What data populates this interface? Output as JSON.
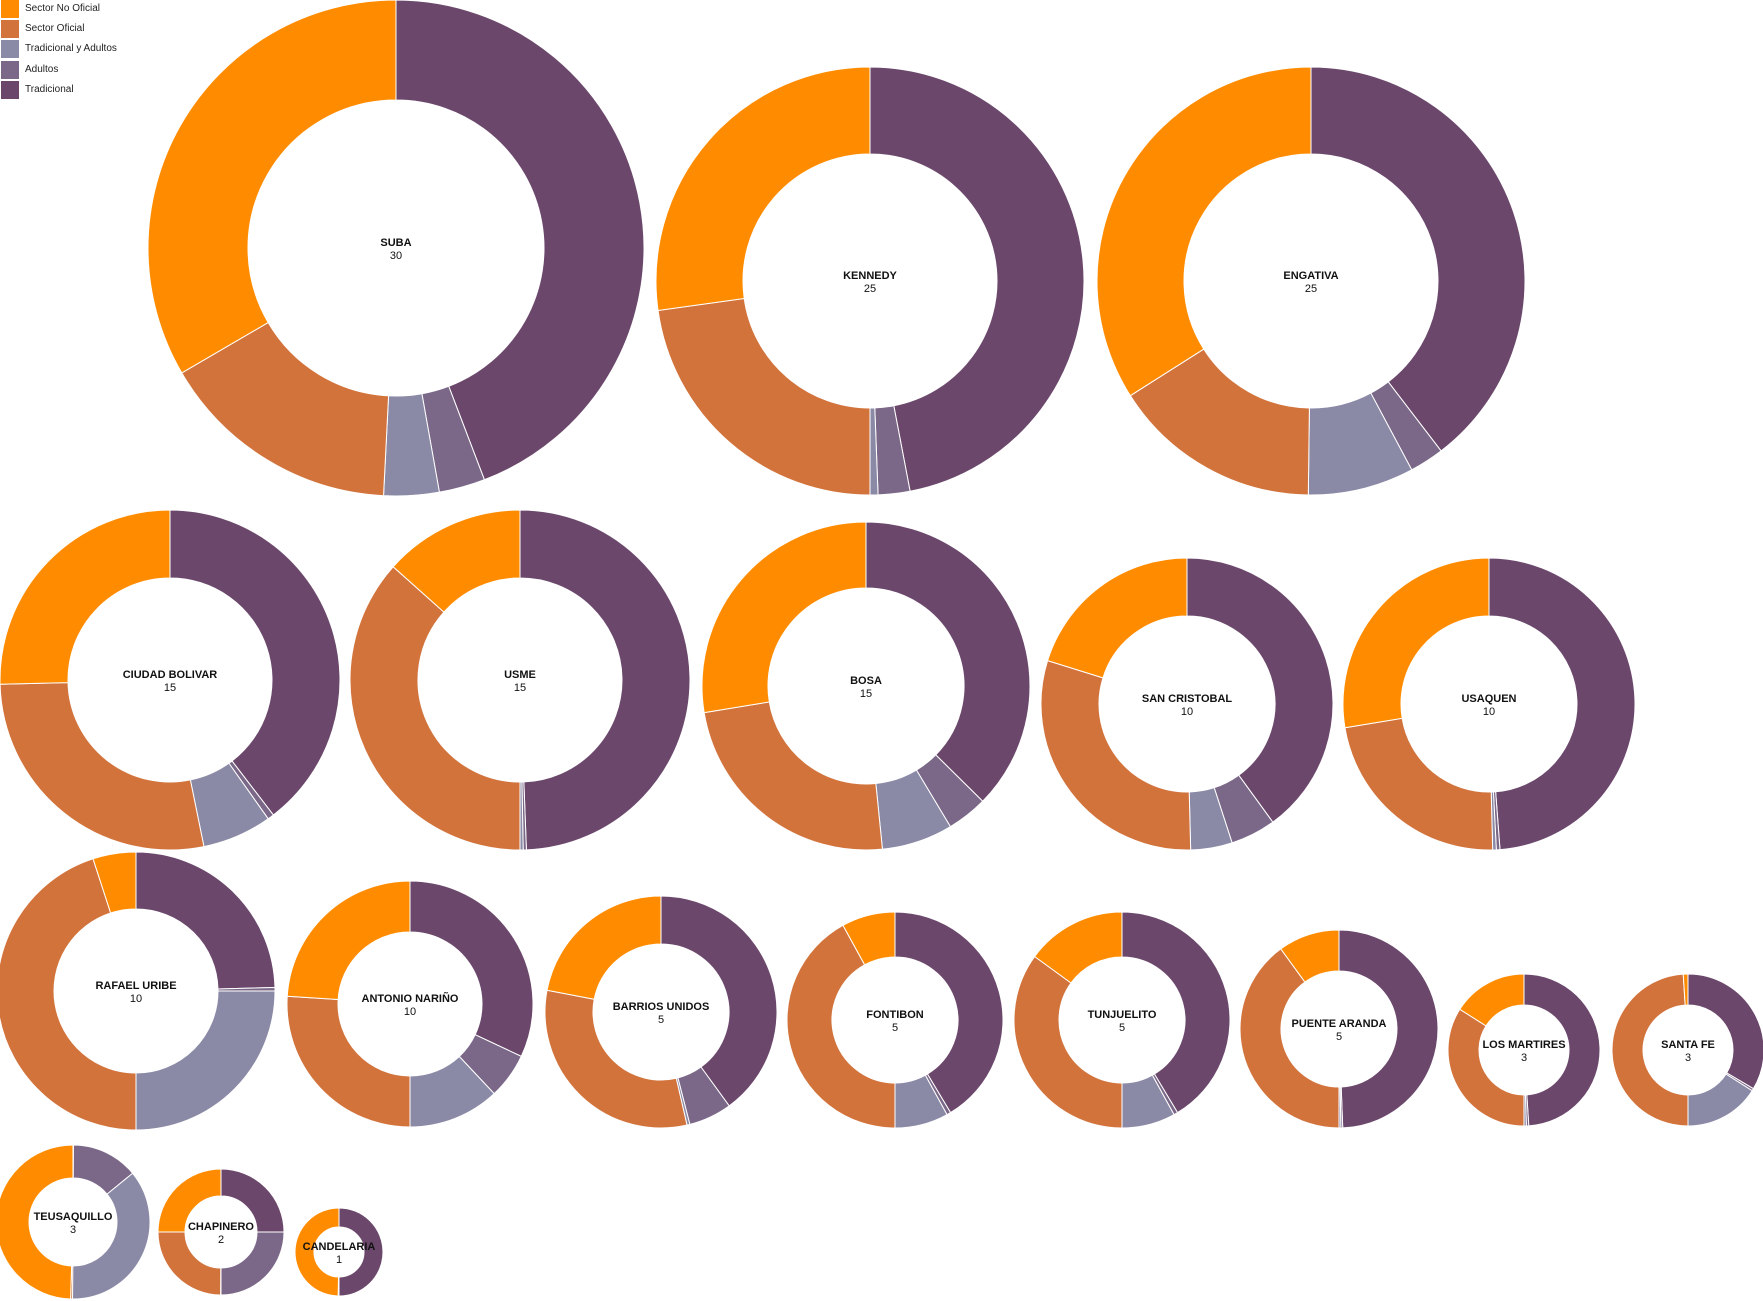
{
  "chart_data": {
    "type": "donut",
    "title": "",
    "legend": {
      "position": "top-left",
      "entries": [
        "Sector No Oficial",
        "Sector Oficial",
        "Tradicional y Adultos",
        "Adultos",
        "Tradicional"
      ]
    },
    "colors": {
      "Sector No Oficial": "#ff8c00",
      "Sector Oficial": "#d2733c",
      "Tradicional y Adultos": "#8a89a6",
      "Adultos": "#7b6888",
      "Tradicional": "#6b486b"
    },
    "separator_color": "#ffffff",
    "series_order": [
      "Tradicional",
      "Adultos",
      "Tradicional y Adultos",
      "Sector Oficial",
      "Sector No Oficial"
    ],
    "donuts": [
      {
        "name": "SUBA",
        "count": "30",
        "values": {
          "Tradicional": 44.2,
          "Adultos": 3.0,
          "Tradicional y Adultos": 3.6,
          "Sector Oficial": 15.8,
          "Sector No Oficial": 33.4
        }
      },
      {
        "name": "KENNEDY",
        "count": "25",
        "values": {
          "Tradicional": 47.0,
          "Adultos": 2.4,
          "Tradicional y Adultos": 0.6,
          "Sector Oficial": 22.8,
          "Sector No Oficial": 27.2
        }
      },
      {
        "name": "ENGATIVA",
        "count": "25",
        "values": {
          "Tradicional": 39.6,
          "Adultos": 2.6,
          "Tradicional y Adultos": 8.0,
          "Sector Oficial": 15.8,
          "Sector No Oficial": 34.0
        }
      },
      {
        "name": "CIUDAD BOLIVAR",
        "count": "15",
        "values": {
          "Tradicional": 39.6,
          "Adultos": 0.6,
          "Tradicional y Adultos": 6.6,
          "Sector Oficial": 27.8,
          "Sector No Oficial": 25.4
        }
      },
      {
        "name": "USME",
        "count": "15",
        "values": {
          "Tradicional": 49.4,
          "Adultos": 0.3,
          "Tradicional y Adultos": 0.3,
          "Sector Oficial": 36.6,
          "Sector No Oficial": 13.4
        }
      },
      {
        "name": "BOSA",
        "count": "15",
        "values": {
          "Tradicional": 37.4,
          "Adultos": 4.0,
          "Tradicional y Adultos": 7.0,
          "Sector Oficial": 24.0,
          "Sector No Oficial": 27.6
        }
      },
      {
        "name": "SAN CRISTOBAL",
        "count": "10",
        "values": {
          "Tradicional": 40.0,
          "Adultos": 5.0,
          "Tradicional y Adultos": 4.6,
          "Sector Oficial": 30.2,
          "Sector No Oficial": 20.2
        }
      },
      {
        "name": "USAQUEN",
        "count": "10",
        "values": {
          "Tradicional": 48.8,
          "Adultos": 0.4,
          "Tradicional y Adultos": 0.4,
          "Sector Oficial": 22.8,
          "Sector No Oficial": 27.6
        }
      },
      {
        "name": "RAFAEL URIBE",
        "count": "10",
        "values": {
          "Tradicional": 24.6,
          "Adultos": 0.4,
          "Tradicional y Adultos": 25.0,
          "Sector Oficial": 45.0,
          "Sector No Oficial": 5.0
        }
      },
      {
        "name": "ANTONIO NARIÑO",
        "count": "10",
        "values": {
          "Tradicional": 32.0,
          "Adultos": 6.0,
          "Tradicional y Adultos": 12.0,
          "Sector Oficial": 26.0,
          "Sector No Oficial": 24.0
        }
      },
      {
        "name": "BARRIOS UNIDOS",
        "count": "5",
        "values": {
          "Tradicional": 40.0,
          "Adultos": 6.0,
          "Tradicional y Adultos": 0.4,
          "Sector Oficial": 31.6,
          "Sector No Oficial": 22.0
        }
      },
      {
        "name": "FONTIBON",
        "count": "5",
        "values": {
          "Tradicional": 41.4,
          "Adultos": 0.6,
          "Tradicional y Adultos": 8.0,
          "Sector Oficial": 42.0,
          "Sector No Oficial": 8.0
        }
      },
      {
        "name": "TUNJUELITO",
        "count": "5",
        "values": {
          "Tradicional": 41.4,
          "Adultos": 0.6,
          "Tradicional y Adultos": 8.0,
          "Sector Oficial": 35.0,
          "Sector No Oficial": 15.0
        }
      },
      {
        "name": "PUENTE ARANDA",
        "count": "5",
        "values": {
          "Tradicional": 49.4,
          "Adultos": 0.3,
          "Tradicional y Adultos": 0.3,
          "Sector Oficial": 40.0,
          "Sector No Oficial": 10.0
        }
      },
      {
        "name": "LOS MARTIRES",
        "count": "3",
        "values": {
          "Tradicional": 49.0,
          "Adultos": 0.5,
          "Tradicional y Adultos": 0.5,
          "Sector Oficial": 34.0,
          "Sector No Oficial": 16.0
        }
      },
      {
        "name": "SANTA FE",
        "count": "3",
        "values": {
          "Tradicional": 33.5,
          "Adultos": 0.5,
          "Tradicional y Adultos": 16.0,
          "Sector Oficial": 49.0,
          "Sector No Oficial": 1.0
        }
      },
      {
        "name": "TEUSAQUILLO",
        "count": "3",
        "values": {
          "Tradicional": 0.1,
          "Adultos": 14.0,
          "Tradicional y Adultos": 36.0,
          "Sector Oficial": 0.4,
          "Sector No Oficial": 49.5
        }
      },
      {
        "name": "CHAPINERO",
        "count": "2",
        "values": {
          "Tradicional": 25.0,
          "Adultos": 25.0,
          "Tradicional y Adultos": 0.1,
          "Sector Oficial": 24.9,
          "Sector No Oficial": 25.0
        }
      },
      {
        "name": "CANDELARIA",
        "count": "1",
        "values": {
          "Tradicional": 50.0,
          "Adultos": 0.1,
          "Tradicional y Adultos": 0.1,
          "Sector Oficial": 0.1,
          "Sector No Oficial": 49.7
        }
      }
    ]
  }
}
